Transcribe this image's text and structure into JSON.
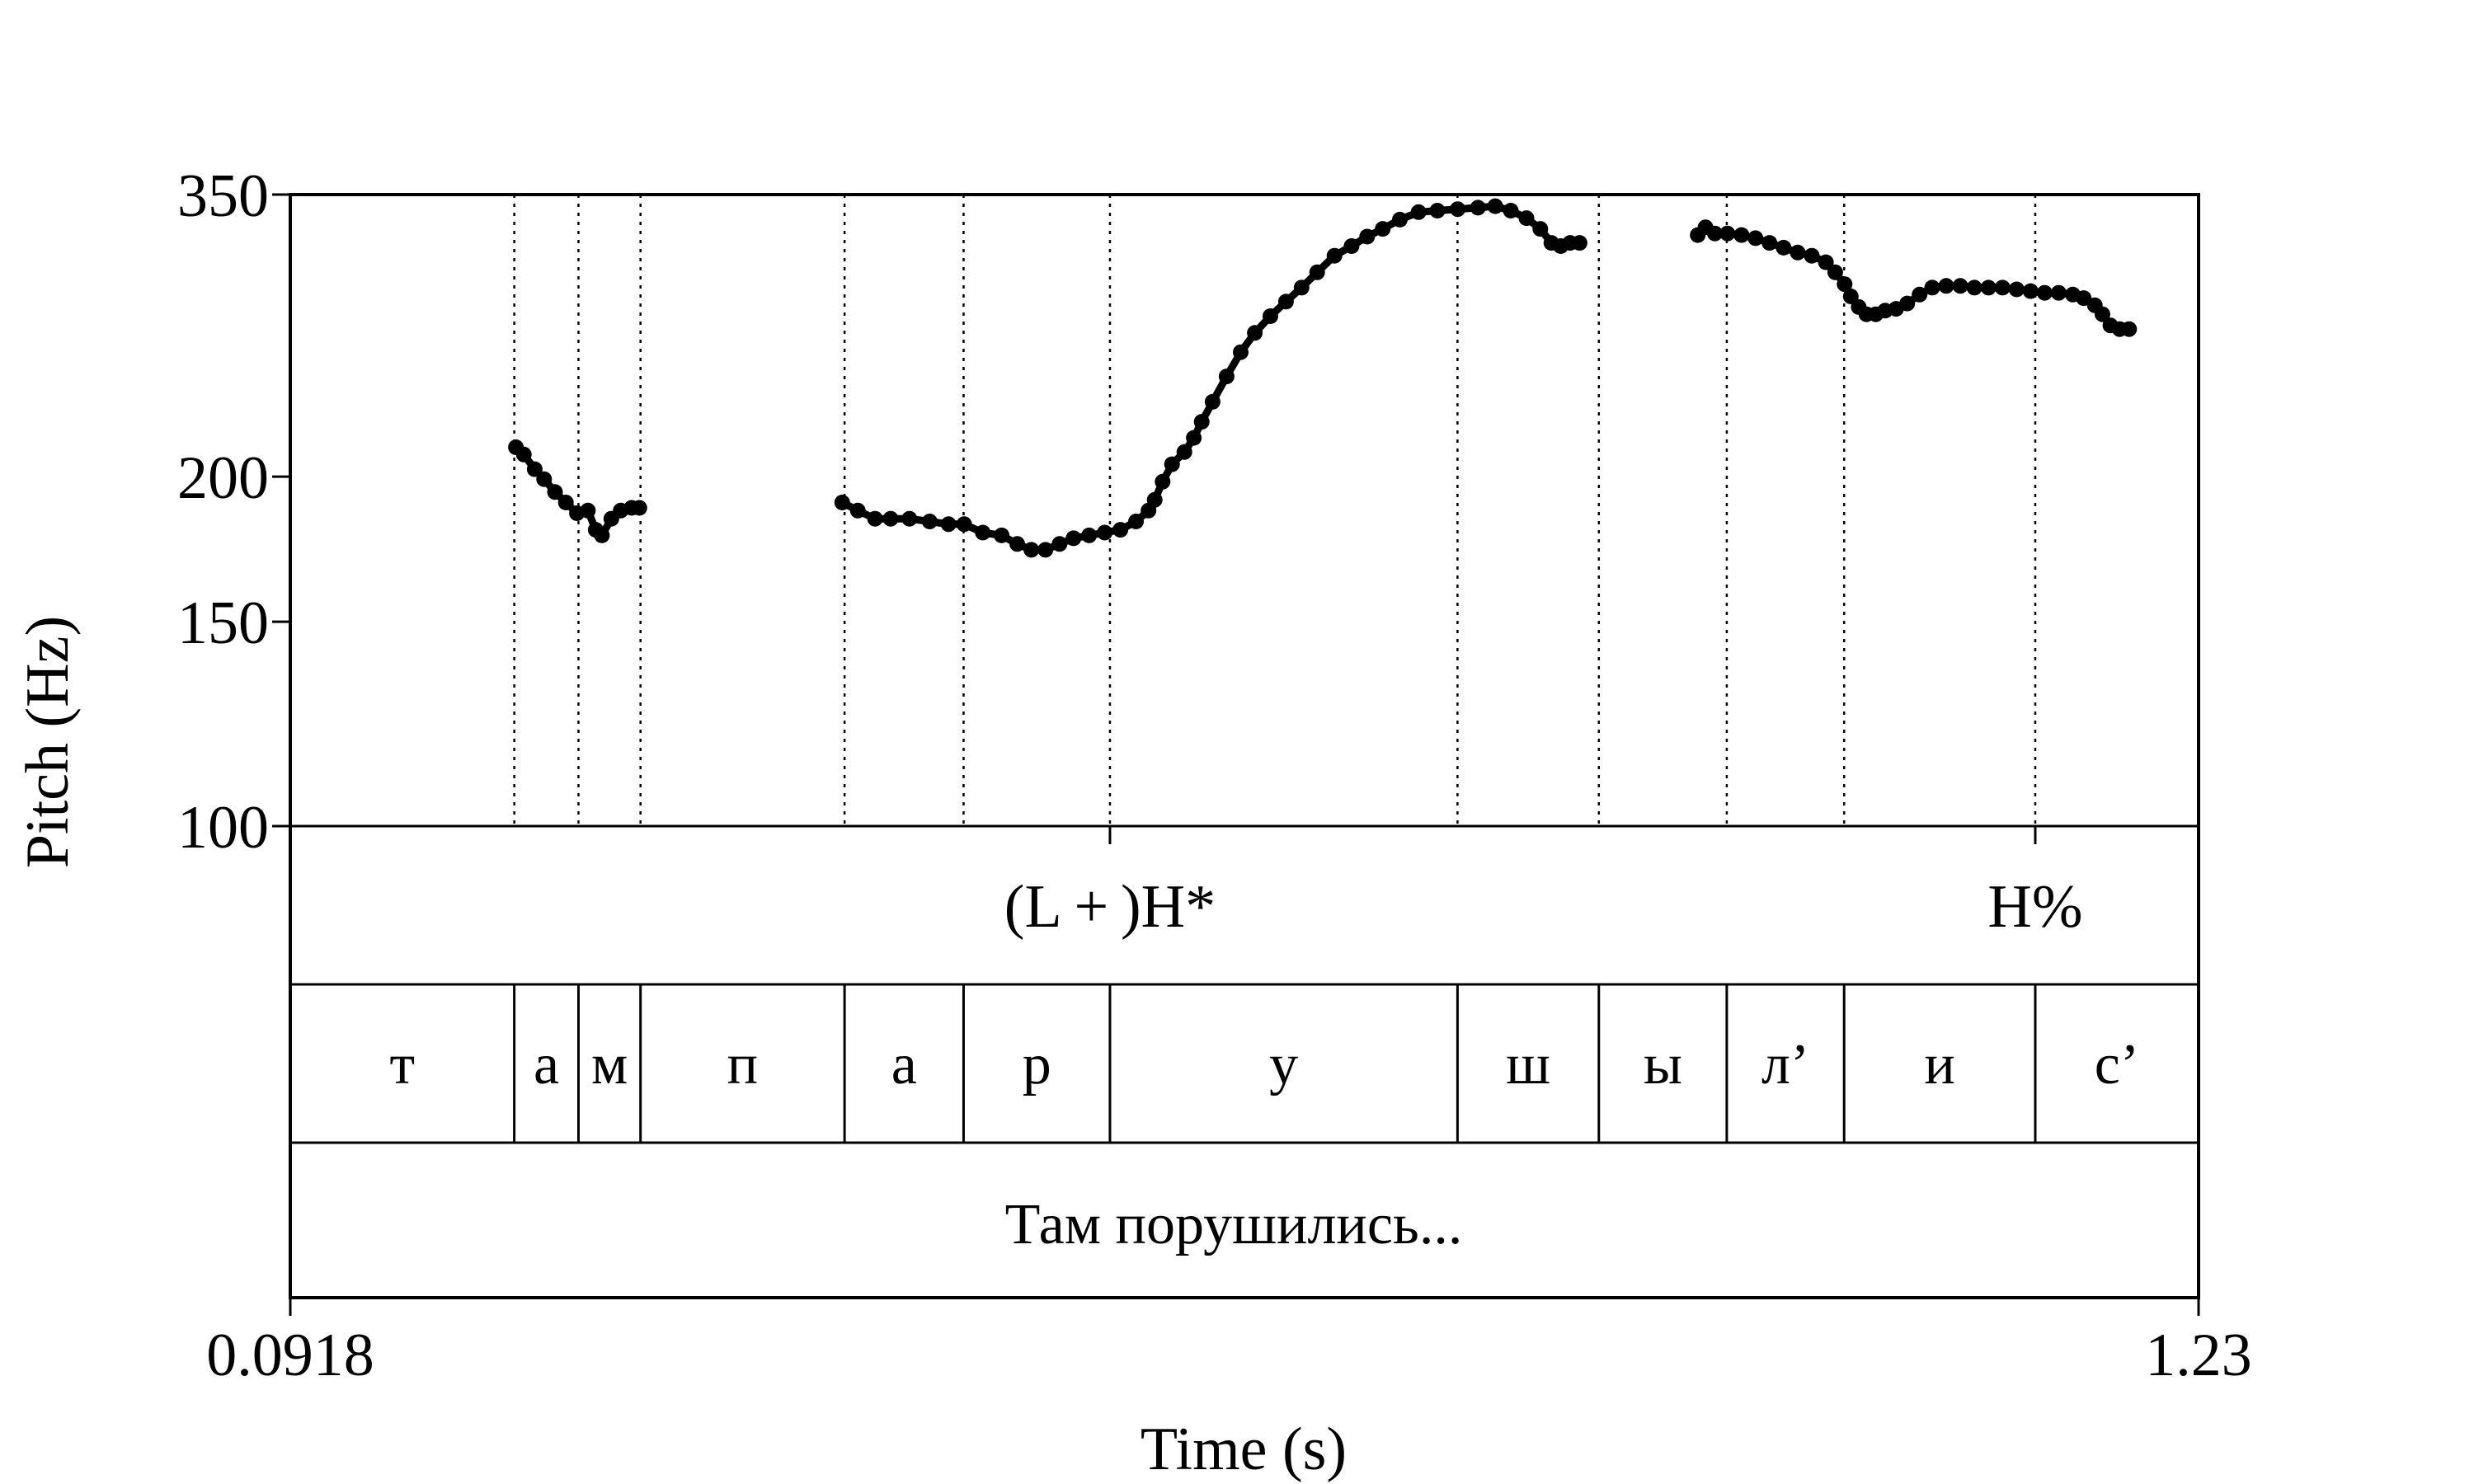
{
  "chart_data": {
    "type": "line",
    "ylabel": "Pitch (Hz)",
    "xlabel": "Time (s)",
    "y_scale": "log",
    "ylim": [
      100,
      350
    ],
    "xlim": [
      0.0918,
      1.23
    ],
    "y_ticks": [
      "350",
      "200",
      "150",
      "100"
    ],
    "y_tick_values": [
      350,
      200,
      150,
      100
    ],
    "x_tick_labels": [
      "0.0918",
      "1.23"
    ],
    "grid": false,
    "series": [
      {
        "points": [
          [
            0.2264,
            212
          ],
          [
            0.2311,
            209
          ],
          [
            0.2376,
            203
          ],
          [
            0.2432,
            199
          ],
          [
            0.2497,
            194
          ],
          [
            0.2562,
            190
          ],
          [
            0.2628,
            186
          ],
          [
            0.2693,
            187
          ],
          [
            0.274,
            180
          ],
          [
            0.2777,
            178
          ],
          [
            0.2833,
            184
          ],
          [
            0.2889,
            187
          ],
          [
            0.2954,
            188
          ],
          [
            0.3,
            188
          ]
        ]
      },
      {
        "points": [
          [
            0.421,
            190
          ],
          [
            0.4303,
            187
          ],
          [
            0.4406,
            184
          ],
          [
            0.4499,
            184
          ],
          [
            0.4611,
            184
          ],
          [
            0.4732,
            183
          ],
          [
            0.4844,
            182
          ],
          [
            0.4937,
            182
          ],
          [
            0.5049,
            179
          ],
          [
            0.5161,
            178
          ],
          [
            0.5254,
            175
          ],
          [
            0.5338,
            173
          ],
          [
            0.5422,
            173
          ],
          [
            0.5506,
            175
          ],
          [
            0.559,
            177
          ],
          [
            0.5683,
            178
          ],
          [
            0.5776,
            179
          ],
          [
            0.5869,
            180
          ],
          [
            0.5962,
            183
          ],
          [
            0.6037,
            187
          ],
          [
            0.6074,
            191
          ],
          [
            0.6121,
            198
          ],
          [
            0.6177,
            205
          ],
          [
            0.6251,
            210
          ],
          [
            0.6307,
            216
          ],
          [
            0.6354,
            223
          ],
          [
            0.6419,
            232
          ],
          [
            0.6503,
            244
          ],
          [
            0.6587,
            256
          ],
          [
            0.6671,
            266
          ],
          [
            0.6764,
            275
          ],
          [
            0.6857,
            283
          ],
          [
            0.695,
            291
          ],
          [
            0.7043,
            300
          ],
          [
            0.7146,
            310
          ],
          [
            0.7248,
            316
          ],
          [
            0.7341,
            322
          ],
          [
            0.7434,
            327
          ],
          [
            0.7536,
            333
          ],
          [
            0.7648,
            338
          ],
          [
            0.776,
            339
          ],
          [
            0.7881,
            340
          ],
          [
            0.8002,
            341
          ],
          [
            0.8105,
            342
          ],
          [
            0.8198,
            339
          ],
          [
            0.8291,
            334
          ],
          [
            0.8374,
            327
          ],
          [
            0.844,
            318
          ],
          [
            0.8496,
            316
          ],
          [
            0.8552,
            318
          ],
          [
            0.8608,
            318
          ]
        ]
      },
      {
        "points": [
          [
            0.9313,
            323
          ],
          [
            0.9359,
            328
          ],
          [
            0.9415,
            324
          ],
          [
            0.949,
            324
          ],
          [
            0.9574,
            323
          ],
          [
            0.9657,
            321
          ],
          [
            0.9741,
            318
          ],
          [
            0.9825,
            315
          ],
          [
            0.9909,
            312
          ],
          [
            0.9993,
            310
          ],
          [
            1.0077,
            306
          ],
          [
            1.0133,
            300
          ],
          [
            1.0189,
            293
          ],
          [
            1.0226,
            286
          ],
          [
            1.0273,
            280
          ],
          [
            1.0319,
            276
          ],
          [
            1.0375,
            276
          ],
          [
            1.0431,
            278
          ],
          [
            1.0496,
            279
          ],
          [
            1.0562,
            282
          ],
          [
            1.0636,
            287
          ],
          [
            1.0711,
            291
          ],
          [
            1.0795,
            292
          ],
          [
            1.0879,
            292
          ],
          [
            1.0963,
            291
          ],
          [
            1.1047,
            291
          ],
          [
            1.1131,
            291
          ],
          [
            1.1215,
            290
          ],
          [
            1.1298,
            289
          ],
          [
            1.1382,
            288
          ],
          [
            1.1466,
            288
          ],
          [
            1.155,
            287
          ],
          [
            1.1615,
            285
          ],
          [
            1.1681,
            281
          ],
          [
            1.1727,
            276
          ],
          [
            1.1774,
            270
          ],
          [
            1.183,
            268
          ],
          [
            1.1886,
            268
          ]
        ]
      }
    ],
    "boundaries": [
      0.2254,
      0.2637,
      0.3007,
      0.4224,
      0.4934,
      0.5807,
      0.788,
      0.8723,
      0.9486,
      1.0186,
      1.1326
    ],
    "tones": [
      {
        "label": "(L + )H*",
        "time": 0.5807
      },
      {
        "label": "H%",
        "time": 1.1326
      }
    ],
    "segments": [
      "т",
      "а",
      "м",
      "п",
      "а",
      "р",
      "у",
      "ш",
      "ы",
      "л’",
      "и",
      "с’"
    ],
    "sentence": "Там порушились..."
  }
}
